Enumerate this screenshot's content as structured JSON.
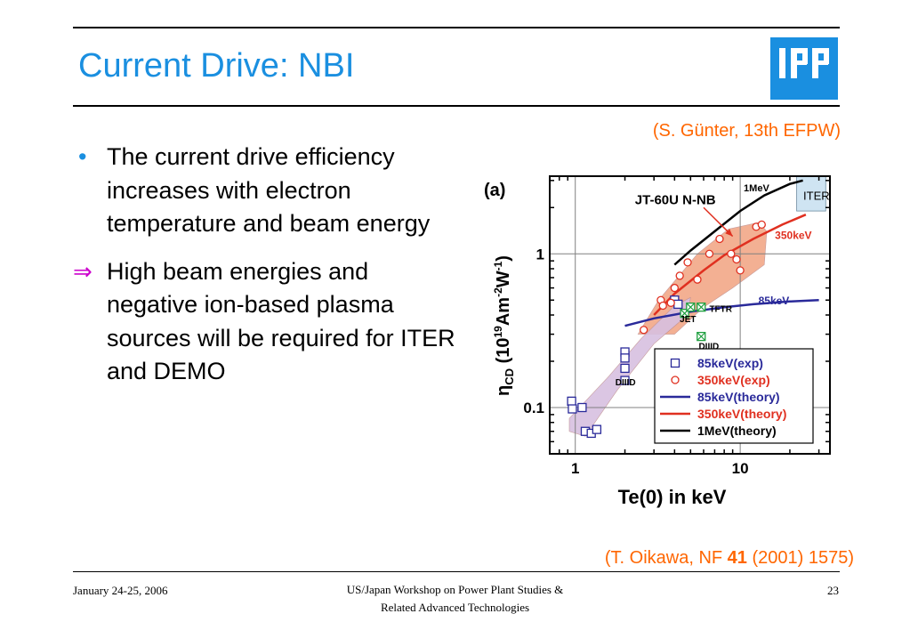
{
  "slide": {
    "title": "Current Drive: NBI",
    "logo_text": "IPP",
    "citation_top": "(S. Günter, 13th EFPW)",
    "citation_bottom_pre": "(T. Oikawa, NF ",
    "citation_bottom_bold": "41",
    "citation_bottom_post": " (2001) 1575)",
    "bullets": [
      {
        "marker": "•",
        "text": "The current drive efficiency increases with electron temperature and beam energy"
      },
      {
        "marker": "⇒",
        "text": "High beam energies and negative ion-based plasma sources will be required for ITER and DEMO"
      }
    ]
  },
  "footer": {
    "date": "January 24-25, 2006",
    "center_line1": "US/Japan Workshop on Power Plant Studies &",
    "center_line2": "Related Advanced Technologies",
    "page": "23"
  },
  "colors": {
    "accent_blue": "#1a8fe0",
    "citation_orange": "#ff6600",
    "arrow_magenta": "#cc00cc",
    "series_85keV": "#2a2a9a",
    "series_350keV": "#e03020",
    "series_1MeV": "#000000",
    "region_350keV": "#f2a888",
    "region_85keV": "#d8c0e0",
    "iter_box": "#cfe4f2"
  },
  "chart_data": {
    "type": "scatter",
    "panel_label": "(a)",
    "xlabel": "Te(0) in keV",
    "ylabel": "η_CD (10^19 Am^-2W^-1)",
    "x_scale": "log",
    "y_scale": "log",
    "xlim": [
      0.7,
      35
    ],
    "ylim": [
      0.05,
      3.2
    ],
    "x_ticks": [
      {
        "value": 1,
        "label": "1"
      },
      {
        "value": 10,
        "label": "10"
      }
    ],
    "y_ticks": [
      {
        "value": 0.1,
        "label": "0.1"
      },
      {
        "value": 1,
        "label": "1"
      }
    ],
    "grid": true,
    "legend_position": "bottom-right",
    "annotations": [
      {
        "text": "JT-60U N-NB",
        "x": 2.3,
        "y": 2.1
      },
      {
        "text": "ITER",
        "x": 29,
        "y": 2.25
      },
      {
        "text": "1MeV",
        "x": 10.5,
        "y": 2.55
      },
      {
        "text": "350keV",
        "x": 21,
        "y": 1.25
      },
      {
        "text": "85keV",
        "x": 16,
        "y": 0.47
      },
      {
        "text": "TFTR",
        "x": 6.5,
        "y": 0.42
      },
      {
        "text": "JET",
        "x": 4.3,
        "y": 0.36
      },
      {
        "text": "DIIID",
        "x": 5.6,
        "y": 0.24
      },
      {
        "text": "DIIID",
        "x": 1.75,
        "y": 0.14
      }
    ],
    "series": [
      {
        "name": "85keV(exp)",
        "kind": "scatter",
        "marker": "square-open",
        "color": "#2a2a9a",
        "x": [
          0.95,
          0.96,
          1.1,
          1.15,
          1.25,
          1.35,
          2.0,
          2.0,
          2.0,
          2.0,
          4.0,
          4.2
        ],
        "y": [
          0.11,
          0.098,
          0.1,
          0.07,
          0.068,
          0.072,
          0.23,
          0.21,
          0.18,
          0.15,
          0.5,
          0.47
        ]
      },
      {
        "name": "350keV(exp)",
        "kind": "scatter",
        "marker": "circle-open",
        "color": "#e03020",
        "x": [
          2.6,
          3.3,
          3.4,
          3.8,
          4.0,
          4.3,
          4.8,
          5.5,
          6.5,
          7.5,
          8.8,
          9.5,
          10.0,
          12.5,
          13.5
        ],
        "y": [
          0.32,
          0.5,
          0.46,
          0.48,
          0.6,
          0.72,
          0.88,
          0.68,
          1.0,
          1.25,
          1.0,
          0.92,
          0.78,
          1.5,
          1.55
        ]
      },
      {
        "name": "JET/TFTR/DIIID",
        "kind": "scatter",
        "marker": "square-cross",
        "color": "#20a040",
        "x": [
          4.6,
          5.0,
          5.8
        ],
        "y": [
          0.41,
          0.45,
          0.45
        ]
      },
      {
        "name": "DIIID",
        "kind": "scatter",
        "marker": "square-cross",
        "color": "#20a040",
        "x": [
          5.8
        ],
        "y": [
          0.29
        ]
      },
      {
        "name": "85keV(theory)",
        "kind": "line",
        "color": "#2a2a9a",
        "x": [
          2.0,
          3.0,
          5.0,
          8.0,
          12.0,
          20.0,
          30.0
        ],
        "y": [
          0.34,
          0.38,
          0.42,
          0.45,
          0.47,
          0.49,
          0.5
        ]
      },
      {
        "name": "350keV(theory)",
        "kind": "line",
        "color": "#e03020",
        "x": [
          3.0,
          4.0,
          6.0,
          8.0,
          12.0,
          18.0,
          25.0
        ],
        "y": [
          0.4,
          0.55,
          0.78,
          0.98,
          1.25,
          1.55,
          1.8
        ]
      },
      {
        "name": "1MeV(theory)",
        "kind": "line",
        "color": "#000000",
        "x": [
          4.0,
          5.0,
          7.0,
          10.0,
          14.0,
          20.0,
          24.0
        ],
        "y": [
          0.85,
          1.05,
          1.4,
          1.9,
          2.4,
          2.85,
          3.0
        ]
      }
    ],
    "regions": [
      {
        "label": "350keV",
        "color": "#f2a888",
        "x": [
          2.4,
          3.2,
          5.5,
          8.5,
          13.0,
          14.5,
          14.0,
          9.0,
          6.0,
          4.0
        ],
        "y": [
          0.3,
          0.5,
          1.0,
          1.45,
          1.6,
          1.4,
          0.85,
          0.6,
          0.45,
          0.3
        ]
      },
      {
        "label": "85keV",
        "color": "#d8c0e0",
        "x": [
          0.92,
          1.6,
          2.5,
          4.0,
          5.0,
          4.8,
          3.0,
          1.8,
          1.15,
          0.92
        ],
        "y": [
          0.085,
          0.16,
          0.28,
          0.46,
          0.52,
          0.4,
          0.26,
          0.13,
          0.065,
          0.07
        ]
      }
    ],
    "iter_region": {
      "label": "ITER",
      "x": [
        22,
        33
      ],
      "y": [
        1.9,
        3.2
      ]
    },
    "arrow": {
      "from": [
        6.0,
        2.0
      ],
      "to": [
        9.0,
        1.3
      ]
    }
  }
}
